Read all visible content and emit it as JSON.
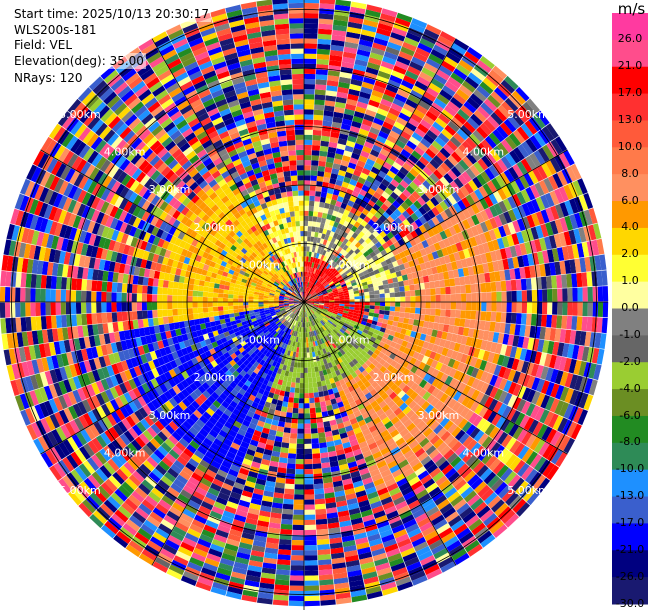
{
  "header": {
    "start_time": "Start time: 2025/10/13 20:30:17",
    "instrument": "WLS200s-181",
    "field": "Field: VEL",
    "elevation": "Elevation(deg): 35.00",
    "nrays": "NRays: 120"
  },
  "colorbar": {
    "unit": "m/s",
    "labels": [
      "26.0",
      "21.0",
      "17.0",
      "13.0",
      "10.0",
      "8.0",
      "6.0",
      "4.0",
      "2.0",
      "1.0",
      "0.0",
      "-1.0",
      "-2.0",
      "-4.0",
      "-6.0",
      "-8.0",
      "-10.0",
      "-13.0",
      "-17.0",
      "-21.0",
      "-26.0",
      "-30.0"
    ],
    "colors": [
      "#ff3aa0",
      "#ff4d8c",
      "#ff0000",
      "#ff3030",
      "#ff5a3a",
      "#ff7a4a",
      "#ff9060",
      "#ff9900",
      "#ffd700",
      "#ffff33",
      "#ffffa0",
      "#808080",
      "#666666",
      "#9acd32",
      "#6b8e23",
      "#228b22",
      "#2e8b57",
      "#1e90ff",
      "#3a5fcd",
      "#0000ff",
      "#000080",
      "#191970"
    ]
  },
  "chart_data": {
    "type": "heatmap",
    "title": "",
    "field": "VEL",
    "units": "m/s",
    "n_rays": 120,
    "elevation_deg": 35.0,
    "value_range": [
      -30.0,
      26.0
    ],
    "range_rings": [
      {
        "label": "1.00km",
        "range_km": 1.0
      },
      {
        "label": "2.00km",
        "range_km": 2.0
      },
      {
        "label": "3.00km",
        "range_km": 3.0
      },
      {
        "label": "4.00km",
        "range_km": 4.0
      },
      {
        "label": "5.00km",
        "range_km": 5.0
      }
    ],
    "max_range_km": 5.2,
    "regions": [
      {
        "sector_deg": [
          260,
          330
        ],
        "range_km": [
          0.4,
          2.5
        ],
        "approx_velocity": 3.5
      },
      {
        "sector_deg": [
          330,
          360
        ],
        "range_km": [
          0.5,
          1.8
        ],
        "approx_velocity": 1.5
      },
      {
        "sector_deg": [
          0,
          60
        ],
        "range_km": [
          0.0,
          0.8
        ],
        "approx_velocity": 18.0
      },
      {
        "sector_deg": [
          0,
          90
        ],
        "range_km": [
          0.8,
          1.7
        ],
        "approx_velocity": 0.0
      },
      {
        "sector_deg": [
          70,
          110
        ],
        "range_km": [
          0.0,
          1.0
        ],
        "approx_velocity": 19.0
      },
      {
        "sector_deg": [
          60,
          160
        ],
        "range_km": [
          1.5,
          3.5
        ],
        "approx_velocity": 6.5
      },
      {
        "sector_deg": [
          110,
          200
        ],
        "range_km": [
          0.0,
          1.6
        ],
        "approx_velocity": -3.0
      },
      {
        "sector_deg": [
          130,
          160
        ],
        "range_km": [
          2.0,
          3.3
        ],
        "approx_velocity": -8.0
      },
      {
        "sector_deg": [
          200,
          260
        ],
        "range_km": [
          0.5,
          3.2
        ],
        "approx_velocity": -18.0
      },
      {
        "sector_deg": [
          180,
          250
        ],
        "range_km": [
          0.0,
          0.8
        ],
        "approx_velocity": -1.0
      },
      {
        "sector_deg": [
          255,
          285
        ],
        "range_km": [
          0.8,
          2.0
        ],
        "approx_velocity": -6.0
      }
    ]
  }
}
